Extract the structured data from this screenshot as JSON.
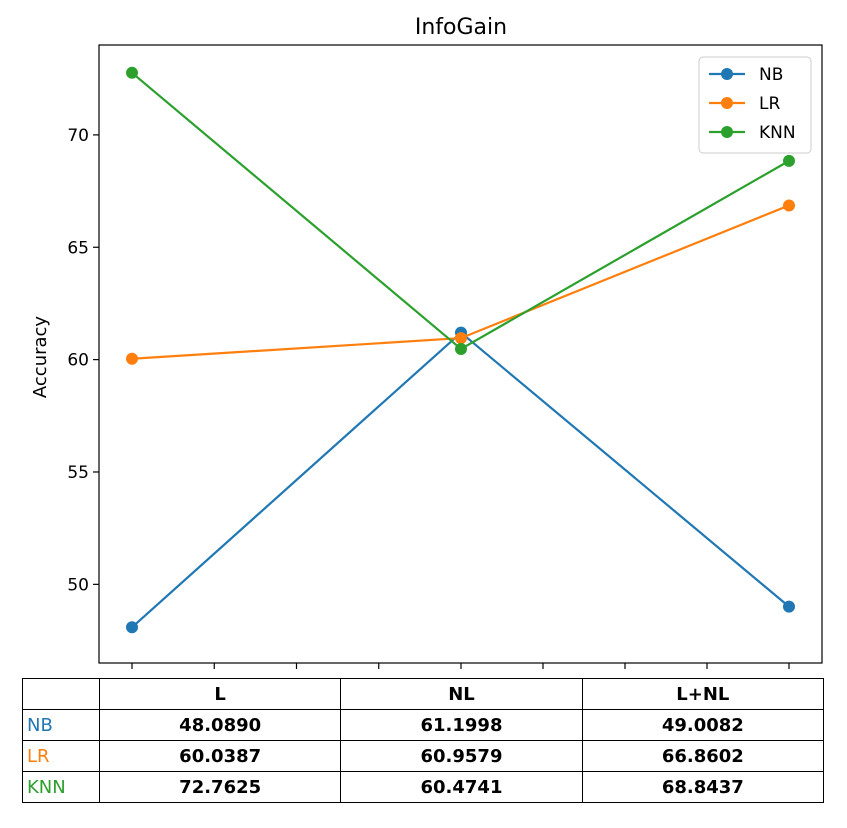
{
  "chart_data": {
    "type": "line",
    "title": "InfoGain",
    "xlabel": "",
    "ylabel": "Accuracy",
    "categories": [
      "L",
      "NL",
      "L+NL"
    ],
    "ylim": [
      46.5,
      74.0
    ],
    "yticks": [
      50,
      55,
      60,
      65,
      70
    ],
    "grid": false,
    "legend_position": "top-right",
    "series": [
      {
        "name": "NB",
        "color": "#1f77b4",
        "values": [
          48.089,
          61.1998,
          49.0082
        ]
      },
      {
        "name": "LR",
        "color": "#ff7f0e",
        "values": [
          60.0387,
          60.9579,
          66.8602
        ]
      },
      {
        "name": "KNN",
        "color": "#2ca02c",
        "values": [
          72.7625,
          60.4741,
          68.8437
        ]
      }
    ]
  },
  "table": {
    "corner": "",
    "columns": [
      "L",
      "NL",
      "L+NL"
    ],
    "rows": [
      {
        "label": "NB",
        "color": "#1f77b4",
        "cells": [
          "48.0890",
          "61.1998",
          "49.0082"
        ]
      },
      {
        "label": "LR",
        "color": "#ff7f0e",
        "cells": [
          "60.0387",
          "60.9579",
          "66.8602"
        ]
      },
      {
        "label": "KNN",
        "color": "#2ca02c",
        "cells": [
          "72.7625",
          "60.4741",
          "68.8437"
        ]
      }
    ]
  }
}
